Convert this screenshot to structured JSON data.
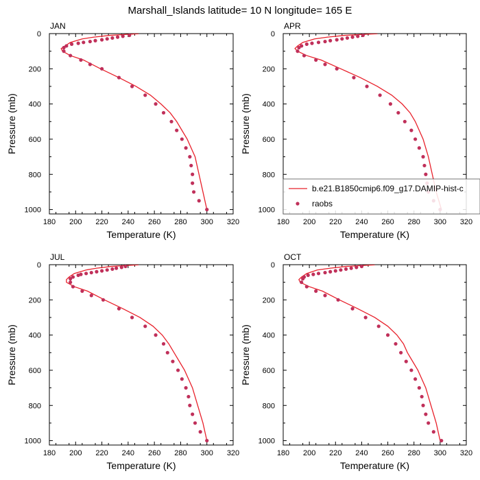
{
  "figure": {
    "title": "Marshall_Islands  latitude= 10 N longitude= 165 E"
  },
  "colors": {
    "model_line": "#e8202a",
    "obs_marker": "#c0305a",
    "frame": "#000000"
  },
  "chart_data": [
    {
      "type": "line",
      "panel": "JAN",
      "xlabel": "Temperature (K)",
      "ylabel": "Pressure (mb)",
      "xlim": [
        180,
        320
      ],
      "ylim": [
        1025,
        0
      ],
      "xticks": [
        180,
        200,
        220,
        240,
        260,
        280,
        300,
        320
      ],
      "yticks": [
        0,
        200,
        400,
        600,
        800,
        1000
      ],
      "series": [
        {
          "name": "b.e21.B1850cmip6.f09_g17.DAMIP-hist-c",
          "kind": "line",
          "x": [
            248,
            238,
            226,
            214,
            205,
            196,
            192,
            189,
            190,
            196,
            206,
            219,
            233,
            246,
            257,
            265,
            272,
            277,
            281,
            285,
            288,
            291,
            294,
            297,
            300
          ],
          "y": [
            1,
            5,
            10,
            20,
            30,
            50,
            70,
            85,
            100,
            125,
            150,
            200,
            250,
            300,
            350,
            400,
            450,
            500,
            550,
            600,
            650,
            700,
            800,
            900,
            1000
          ]
        },
        {
          "name": "raobs",
          "kind": "marker",
          "x": [
            241,
            236,
            232,
            228,
            224,
            220,
            215,
            211,
            206,
            202,
            197,
            193,
            191,
            191,
            196,
            204,
            211,
            220,
            233,
            243,
            253,
            261,
            267,
            273,
            277,
            281,
            284,
            287,
            288,
            289,
            289,
            290,
            294,
            300
          ],
          "y": [
            10,
            15,
            20,
            25,
            30,
            35,
            40,
            45,
            50,
            55,
            60,
            70,
            80,
            100,
            125,
            150,
            175,
            200,
            250,
            300,
            350,
            400,
            450,
            500,
            550,
            600,
            650,
            700,
            750,
            800,
            850,
            900,
            950,
            1000
          ]
        }
      ]
    },
    {
      "type": "line",
      "panel": "APR",
      "xlabel": "Temperature (K)",
      "ylabel": "Pressure (mb)",
      "xlim": [
        180,
        320
      ],
      "ylim": [
        1025,
        0
      ],
      "xticks": [
        180,
        200,
        220,
        240,
        260,
        280,
        300,
        320
      ],
      "yticks": [
        0,
        200,
        400,
        600,
        800,
        1000
      ],
      "series": [
        {
          "name": "b.e21.B1850cmip6.f09_g17.DAMIP-hist-c",
          "kind": "line",
          "x": [
            252,
            240,
            227,
            214,
            204,
            195,
            191,
            189,
            191,
            198,
            209,
            224,
            239,
            252,
            263,
            271,
            277,
            281,
            284,
            287,
            289,
            291,
            294,
            297,
            301
          ],
          "y": [
            1,
            5,
            10,
            20,
            30,
            50,
            70,
            85,
            100,
            125,
            150,
            200,
            250,
            300,
            350,
            400,
            450,
            500,
            550,
            600,
            650,
            700,
            800,
            900,
            1000
          ]
        },
        {
          "name": "raobs",
          "kind": "marker",
          "x": [
            241,
            237,
            233,
            229,
            225,
            221,
            216,
            212,
            207,
            202,
            198,
            194,
            192,
            191,
            196,
            205,
            212,
            221,
            234,
            244,
            254,
            262,
            268,
            273,
            278,
            281,
            284,
            287,
            288,
            289,
            290,
            291,
            295,
            300
          ],
          "y": [
            10,
            15,
            20,
            25,
            30,
            35,
            40,
            45,
            50,
            55,
            60,
            70,
            80,
            100,
            125,
            150,
            175,
            200,
            250,
            300,
            350,
            400,
            450,
            500,
            550,
            600,
            650,
            700,
            750,
            800,
            850,
            900,
            950,
            1000
          ]
        }
      ],
      "legend": {
        "placement": "lower-right",
        "entries": [
          {
            "label": "b.e21.B1850cmip6.f09_g17.DAMIP-hist-c",
            "kind": "line"
          },
          {
            "label": "raobs",
            "kind": "marker"
          }
        ]
      }
    },
    {
      "type": "line",
      "panel": "JUL",
      "xlabel": "Temperature (K)",
      "ylabel": "Pressure (mb)",
      "xlim": [
        180,
        320
      ],
      "ylim": [
        1025,
        0
      ],
      "xticks": [
        180,
        200,
        220,
        240,
        260,
        280,
        300,
        320
      ],
      "yticks": [
        0,
        200,
        400,
        600,
        800,
        1000
      ],
      "series": [
        {
          "name": "b.e21.B1850cmip6.f09_g17.DAMIP-hist-c",
          "kind": "line",
          "x": [
            248,
            238,
            227,
            216,
            208,
            199,
            195,
            193,
            193,
            199,
            209,
            222,
            236,
            249,
            259,
            266,
            271,
            275,
            279,
            283,
            286,
            289,
            293,
            297,
            300
          ],
          "y": [
            1,
            5,
            10,
            20,
            30,
            50,
            70,
            85,
            100,
            125,
            150,
            200,
            250,
            300,
            350,
            400,
            450,
            500,
            550,
            600,
            650,
            700,
            800,
            900,
            1000
          ]
        },
        {
          "name": "raobs",
          "kind": "marker",
          "x": [
            238,
            235,
            231,
            228,
            224,
            220,
            216,
            212,
            208,
            204,
            202,
            198,
            196,
            196,
            198,
            205,
            212,
            221,
            233,
            243,
            253,
            261,
            267,
            270,
            274,
            278,
            281,
            284,
            286,
            287,
            289,
            291,
            295,
            300
          ],
          "y": [
            10,
            15,
            20,
            25,
            30,
            35,
            40,
            45,
            50,
            55,
            60,
            70,
            80,
            100,
            125,
            150,
            175,
            200,
            250,
            300,
            350,
            400,
            450,
            500,
            550,
            600,
            650,
            700,
            750,
            800,
            850,
            900,
            950,
            1000
          ]
        }
      ]
    },
    {
      "type": "line",
      "panel": "OCT",
      "xlabel": "Temperature (K)",
      "ylabel": "Pressure (mb)",
      "xlim": [
        180,
        320
      ],
      "ylim": [
        1025,
        0
      ],
      "xticks": [
        180,
        200,
        220,
        240,
        260,
        280,
        300,
        320
      ],
      "yticks": [
        0,
        200,
        400,
        600,
        800,
        1000
      ],
      "series": [
        {
          "name": "b.e21.B1850cmip6.f09_g17.DAMIP-hist-c",
          "kind": "line",
          "x": [
            250,
            240,
            228,
            216,
            206,
            198,
            194,
            192,
            193,
            200,
            210,
            223,
            237,
            250,
            260,
            267,
            272,
            275,
            279,
            283,
            286,
            289,
            293,
            297,
            300
          ],
          "y": [
            1,
            5,
            10,
            20,
            30,
            50,
            70,
            85,
            100,
            125,
            150,
            200,
            250,
            300,
            350,
            400,
            450,
            500,
            550,
            600,
            650,
            700,
            800,
            900,
            1000
          ]
        },
        {
          "name": "raobs",
          "kind": "marker",
          "x": [
            240,
            236,
            232,
            228,
            224,
            220,
            216,
            212,
            207,
            203,
            199,
            196,
            195,
            194,
            198,
            205,
            212,
            222,
            233,
            243,
            253,
            260,
            266,
            270,
            274,
            278,
            281,
            284,
            286,
            287,
            289,
            291,
            295,
            301
          ],
          "y": [
            10,
            15,
            20,
            25,
            30,
            35,
            40,
            45,
            50,
            55,
            60,
            70,
            80,
            100,
            125,
            150,
            175,
            200,
            250,
            300,
            350,
            400,
            450,
            500,
            550,
            600,
            650,
            700,
            750,
            800,
            850,
            900,
            950,
            1000
          ]
        }
      ]
    }
  ]
}
